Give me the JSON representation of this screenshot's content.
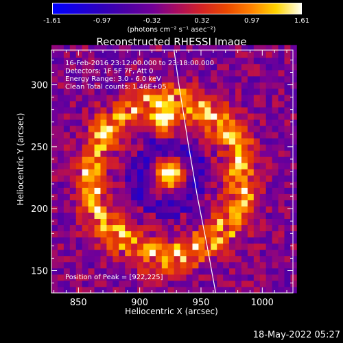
{
  "chart_data": {
    "type": "heatmap",
    "title": "Reconstructed RHESSI Image",
    "xlabel": "Heliocentric X (arcsec)",
    "ylabel": "Heliocentric Y (arcsec)",
    "xlim": [
      828,
      1025
    ],
    "ylim": [
      132,
      328
    ],
    "x_ticks": [
      850,
      900,
      950,
      1000
    ],
    "y_ticks": [
      150,
      200,
      250,
      300
    ],
    "colorbar": {
      "min": -1.61,
      "max": 1.61,
      "ticks": [
        "-1.61",
        "-0.97",
        "-0.32",
        "0.32",
        "0.97",
        "1.61"
      ],
      "unit_text": "(photons cm⁻² s⁻¹ asec⁻²)"
    },
    "annotations": [
      "16-Feb-2016 23:12:00.000 to 23:18:00.000",
      "Detectors: 1F 5F 7F, Att 0",
      "Energy Range: 3.0 - 6.0 keV",
      "Clean     Total counts: 1.46E+05"
    ],
    "peak_label": "Position of Peak = [922,225]",
    "peak_position": [
      922,
      225
    ],
    "limb_curve": [
      [
        928,
        328
      ],
      [
        932,
        300
      ],
      [
        940,
        250
      ],
      [
        947,
        210
      ],
      [
        955,
        170
      ],
      [
        962,
        132
      ]
    ],
    "sources": [
      {
        "x": 922,
        "y": 225,
        "intensity": 1.61
      },
      {
        "x": 918,
        "y": 270,
        "intensity": 1.3
      }
    ]
  },
  "footer_timestamp": "18-May-2022 05:27"
}
